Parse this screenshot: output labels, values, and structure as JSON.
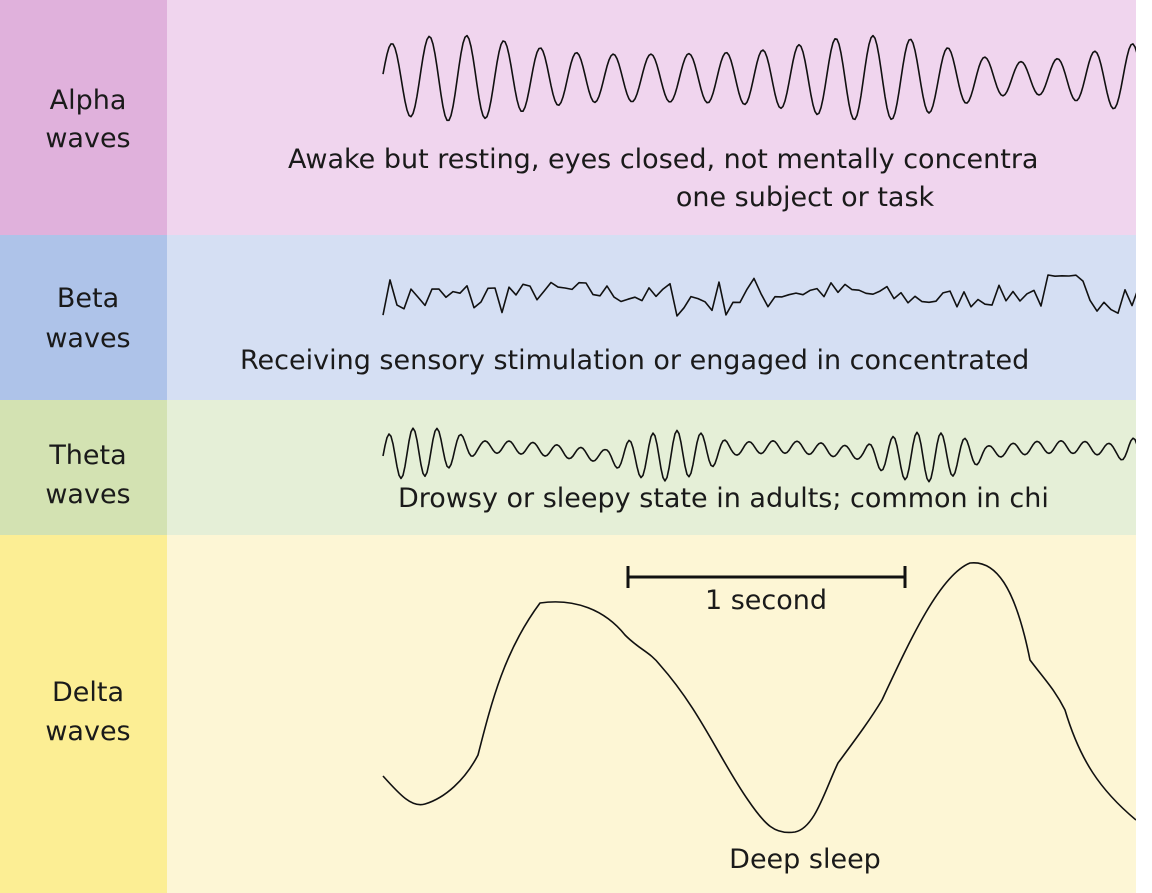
{
  "rows": [
    {
      "label": [
        "Alpha",
        "waves"
      ],
      "description": [
        "Awake but resting, eyes closed, not mentally concentra",
        "one subject or task"
      ]
    },
    {
      "label": [
        "Beta",
        "waves"
      ],
      "description": [
        "Receiving sensory stimulation or engaged in concentrated"
      ]
    },
    {
      "label": [
        "Theta",
        "waves"
      ],
      "description": [
        "Drowsy or sleepy state in adults; common in chi"
      ]
    },
    {
      "label": [
        "Delta",
        "waves"
      ],
      "description": [
        "Deep sleep"
      ]
    }
  ],
  "scale_bar": "1 second"
}
